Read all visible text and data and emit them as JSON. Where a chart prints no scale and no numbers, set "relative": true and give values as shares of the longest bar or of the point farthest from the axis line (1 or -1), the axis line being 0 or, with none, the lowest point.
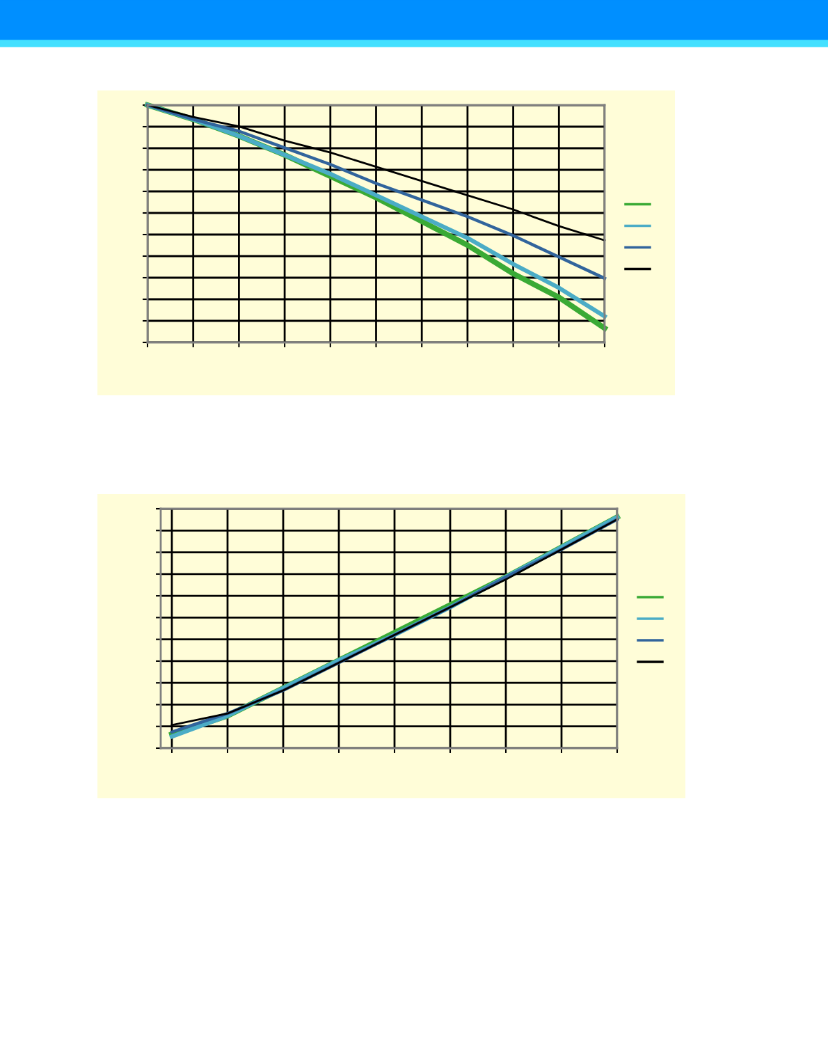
{
  "chart_data": [
    {
      "type": "line",
      "relative": true,
      "grid": true,
      "marker": "none",
      "line_style": "solid",
      "categories": [
        null,
        null,
        null,
        null,
        null,
        null,
        null,
        null,
        null,
        null,
        null
      ],
      "series": [
        {
          "color": "#3aaa35",
          "values": [
            1.0,
            0.94,
            0.87,
            0.79,
            0.7,
            0.61,
            0.51,
            0.41,
            0.29,
            0.19,
            0.06
          ]
        },
        {
          "color": "#4bacc6",
          "values": [
            1.0,
            0.94,
            0.87,
            0.79,
            0.71,
            0.62,
            0.53,
            0.44,
            0.33,
            0.23,
            0.11
          ]
        },
        {
          "color": "#31649c",
          "values": [
            1.0,
            0.94,
            0.89,
            0.82,
            0.75,
            0.67,
            0.6,
            0.53,
            0.45,
            0.36,
            0.27
          ]
        },
        {
          "color": "#000000",
          "values": [
            1.0,
            0.95,
            0.91,
            0.85,
            0.8,
            0.74,
            0.68,
            0.62,
            0.56,
            0.49,
            0.43
          ]
        }
      ]
    },
    {
      "type": "line",
      "relative": true,
      "grid": true,
      "marker": "none",
      "line_style": "solid",
      "categories": [
        null,
        null,
        null,
        null,
        null,
        null,
        null,
        null,
        null
      ],
      "series": [
        {
          "color": "#3aaa35",
          "values": [
            0.06,
            0.14,
            0.26,
            0.38,
            0.5,
            0.62,
            0.74,
            0.87,
            1.0
          ]
        },
        {
          "color": "#4bacc6",
          "values": [
            0.05,
            0.14,
            0.26,
            0.38,
            0.49,
            0.61,
            0.74,
            0.87,
            1.0
          ]
        },
        {
          "color": "#31649c",
          "values": [
            0.07,
            0.15,
            0.25,
            0.37,
            0.49,
            0.61,
            0.74,
            0.86,
            0.99
          ]
        },
        {
          "color": "#000000",
          "values": [
            0.1,
            0.15,
            0.25,
            0.37,
            0.49,
            0.61,
            0.73,
            0.86,
            0.99
          ]
        }
      ]
    }
  ]
}
